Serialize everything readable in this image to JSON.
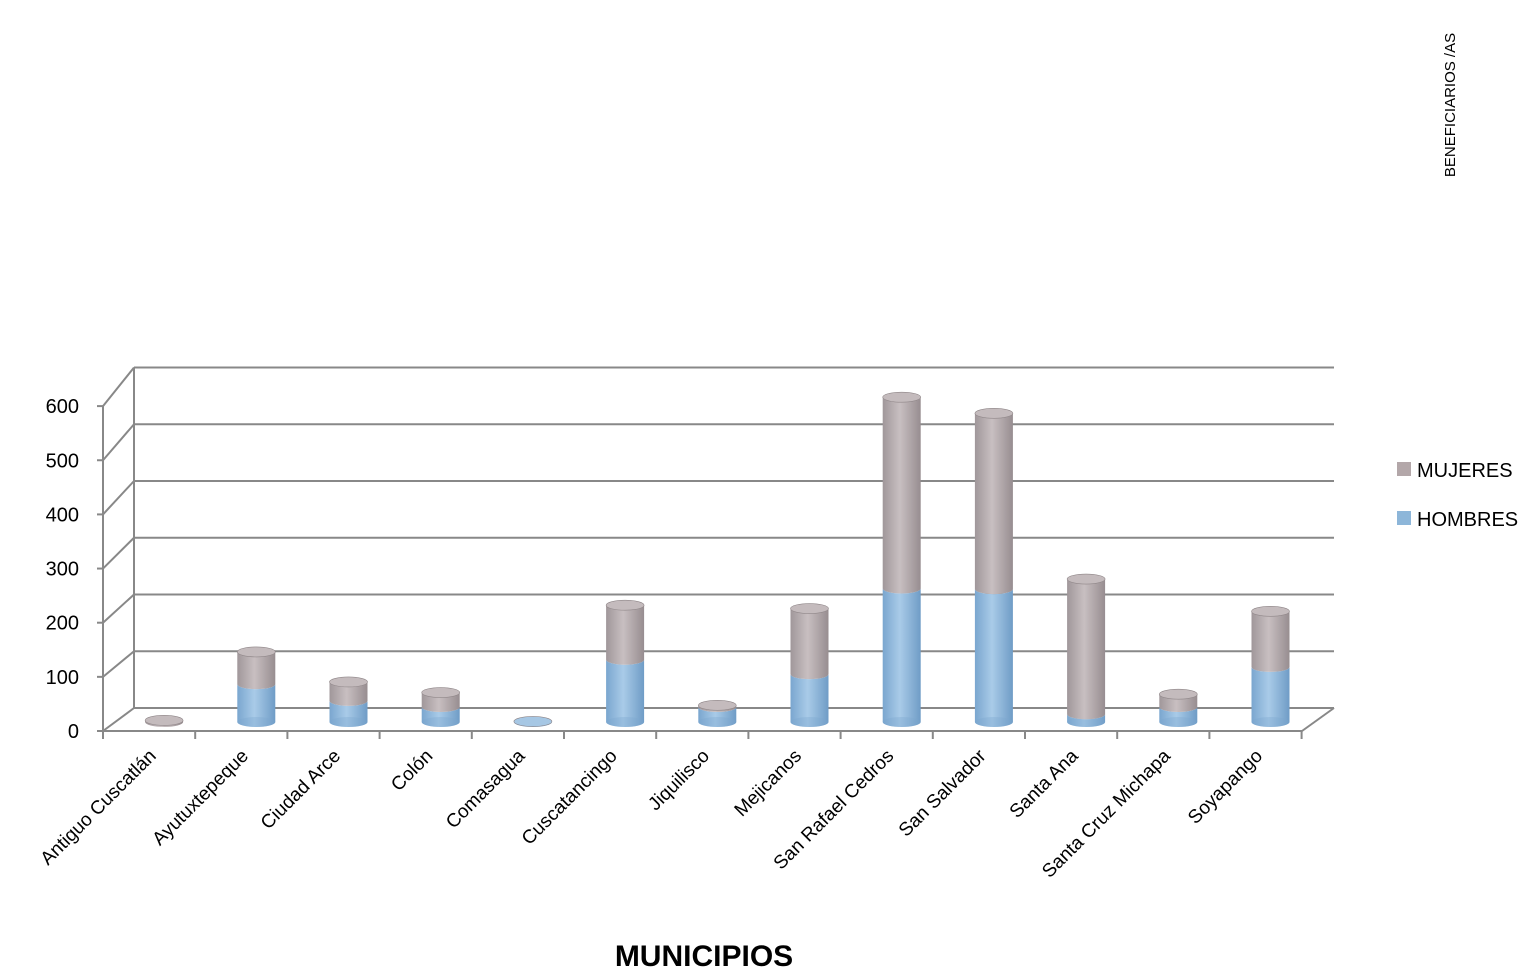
{
  "chart_data": {
    "type": "bar",
    "stacked": true,
    "style": "3d-cylinder",
    "categories": [
      "Antiguo Cuscatlán",
      "Ayutuxtepeque",
      "Ciudad Arce",
      "Colón",
      "Comasagua",
      "Cuscatancingo",
      "Jiquilisco",
      "Mejicanos",
      "San Rafael Cedros",
      "San Salvador",
      "Santa Ana",
      "Santa Cruz Michapa",
      "Soyapango"
    ],
    "series": [
      {
        "name": "HOMBRES",
        "color": "#8db6d9",
        "values": [
          0,
          68,
          38,
          27,
          1,
          112,
          27,
          86,
          240,
          239,
          14,
          27,
          99
        ]
      },
      {
        "name": "MUJERES",
        "color": "#b3a7a9",
        "values": [
          3,
          58,
          34,
          26,
          0,
          98,
          3,
          118,
          344,
          316,
          243,
          23,
          100
        ]
      }
    ],
    "xlabel": "MUNICIPIOS",
    "ylabel": "BENEFICIARIOS /AS",
    "ylim": [
      0,
      600
    ],
    "yticks": [
      0,
      100,
      200,
      300,
      400,
      500,
      600
    ],
    "legend": "right",
    "grid": true
  }
}
